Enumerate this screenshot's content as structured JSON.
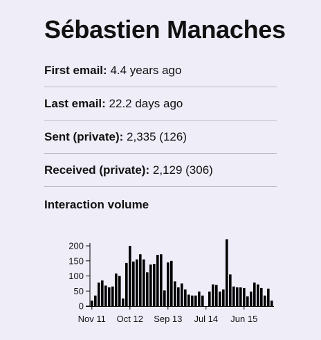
{
  "person": {
    "name": "Sébastien Manaches"
  },
  "stats": [
    {
      "label": "First email:",
      "value": "4.4 years ago"
    },
    {
      "label": "Last email:",
      "value": "22.2 days ago"
    },
    {
      "label": "Sent (private):",
      "value": "2,335 (126)"
    },
    {
      "label": "Received (private):",
      "value": "2,129 (306)"
    }
  ],
  "chart_title": "Interaction volume",
  "chart_data": {
    "type": "bar",
    "title": "",
    "xlabel": "",
    "ylabel": "",
    "ylim": [
      0,
      230
    ],
    "y_ticks": [
      0,
      50,
      100,
      150,
      200
    ],
    "x_tick_labels": [
      "Nov 11",
      "Oct 12",
      "Sep 13",
      "Jul 14",
      "Jun 15"
    ],
    "x_tick_positions": [
      0,
      11,
      22,
      33,
      44
    ],
    "values": [
      18,
      35,
      78,
      85,
      68,
      62,
      65,
      108,
      100,
      25,
      143,
      200,
      148,
      155,
      172,
      155,
      112,
      138,
      140,
      170,
      172,
      52,
      145,
      150,
      82,
      62,
      75,
      55,
      38,
      35,
      35,
      48,
      35,
      0,
      48,
      72,
      70,
      48,
      55,
      222,
      105,
      65,
      62,
      62,
      60,
      32,
      48,
      78,
      72,
      60,
      35,
      58,
      18
    ],
    "colors": {
      "bar": "#000000",
      "axis": "#000000"
    },
    "grid": false,
    "legend": "none"
  }
}
